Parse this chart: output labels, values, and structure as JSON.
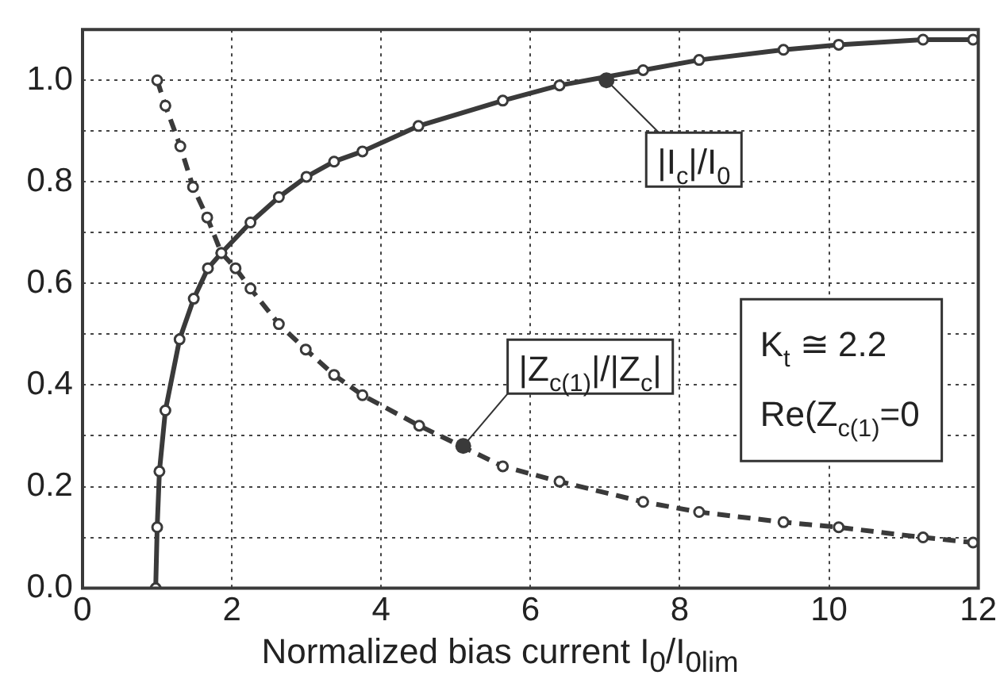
{
  "chart_data": {
    "type": "line",
    "xlabel": "Normalized bias current I$_{0}$/I$_{0lim}$",
    "xlim": [
      0,
      12
    ],
    "xticks": [
      0,
      2,
      4,
      6,
      8,
      10,
      12
    ],
    "ylim": [
      0,
      1.1
    ],
    "yticks": [
      {
        "value": 0,
        "label": "0.0"
      },
      {
        "value": 0.1,
        "label": null
      },
      {
        "value": 0.2,
        "label": "0.2"
      },
      {
        "value": 0.3,
        "label": null
      },
      {
        "value": 0.4,
        "label": "0.4"
      },
      {
        "value": 0.5,
        "label": null
      },
      {
        "value": 0.6,
        "label": "0.6"
      },
      {
        "value": 0.7,
        "label": null
      },
      {
        "value": 0.8,
        "label": "0.8"
      },
      {
        "value": 0.9,
        "label": null
      },
      {
        "value": 1,
        "label": "1.0"
      }
    ],
    "grid": true,
    "marker": "circle",
    "legend": false,
    "series": [
      {
        "color": "#3a3a3a",
        "line_style": "solid",
        "x": [
          0.98,
          1.0,
          1.03,
          1.11,
          1.3,
          1.49,
          1.68,
          1.86,
          2.25,
          2.63,
          3.0,
          3.37,
          3.75,
          4.5,
          5.63,
          6.39,
          7.51,
          8.26,
          9.39,
          10.13,
          11.26,
          11.93
        ],
        "values": [
          0,
          0.12,
          0.23,
          0.35,
          0.49,
          0.57,
          0.63,
          0.66,
          0.72,
          0.77,
          0.81,
          0.84,
          0.86,
          0.91,
          0.96,
          0.99,
          1.02,
          1.04,
          1.06,
          1.07,
          1.08,
          1.08
        ]
      },
      {
        "color": "#3a3a3a",
        "line_style": "dashed",
        "x": [
          1,
          1.11,
          1.31,
          1.48,
          1.67,
          1.86,
          2.05,
          2.25,
          2.63,
          2.99,
          3.37,
          3.75,
          4.51,
          5.63,
          6.39,
          7.51,
          8.26,
          9.39,
          10.13,
          11.26,
          11.93
        ],
        "values": [
          1.0,
          0.95,
          0.87,
          0.79,
          0.73,
          0.66,
          0.63,
          0.59,
          0.52,
          0.47,
          0.42,
          0.38,
          0.32,
          0.24,
          0.21,
          0.17,
          0.15,
          0.13,
          0.12,
          0.1,
          0.09
        ]
      }
    ],
    "annotations": [
      {
        "text": "|I$_{c}$|/I$_{0}$",
        "x": 7.02,
        "y": 1.0
      },
      {
        "text": "|Z$_{c(1)}$|/|Z$_{c}$|",
        "x": 5.1,
        "y": 0.28
      },
      "K$_{t}$ ≅ 2.2",
      "Re(Z$_{c(1)}$=0"
    ]
  }
}
